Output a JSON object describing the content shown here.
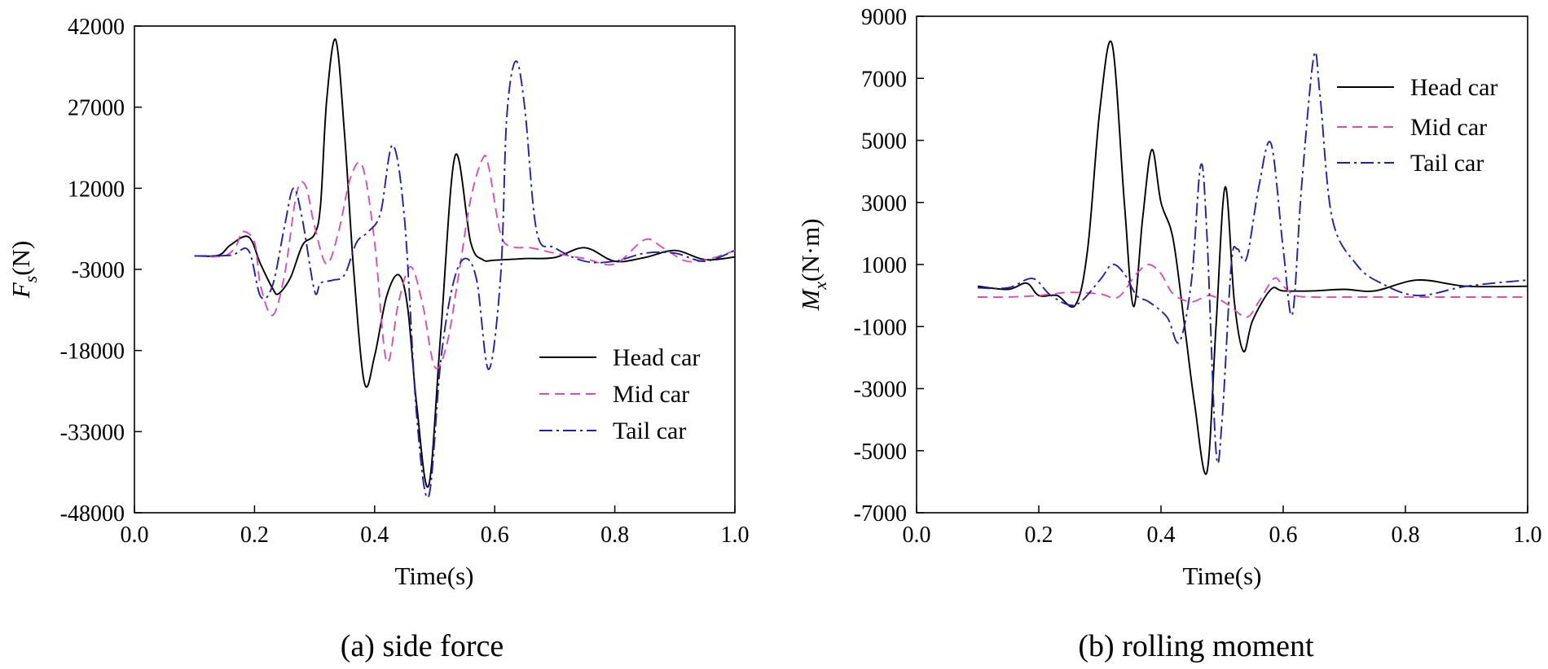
{
  "captions": [
    "(a) side force",
    "(b) rolling moment"
  ],
  "chart_data": [
    {
      "type": "line",
      "title": "(a) side force",
      "xlabel": "Time(s)",
      "ylabel": {
        "main": "F",
        "sub": "s",
        "unit": "(N)"
      },
      "xlim": [
        0.0,
        1.0
      ],
      "ylim": [
        -48000,
        42000
      ],
      "xticks": [
        0.0,
        0.2,
        0.4,
        0.6,
        0.8,
        1.0
      ],
      "xtick_labels": [
        "0.0",
        "0.2",
        "0.4",
        "0.6",
        "0.8",
        "1.0"
      ],
      "yticks": [
        42000,
        27000,
        12000,
        -3000,
        -18000,
        -33000,
        -48000
      ],
      "ytick_labels": [
        "42000",
        "27000",
        "12000",
        "-3000",
        "-18000",
        "-33000",
        "-48000"
      ],
      "legend_position": "lower-right",
      "series": [
        {
          "name": "Head car",
          "color": "#000000",
          "dash": "solid",
          "x": [
            0.1,
            0.14,
            0.16,
            0.19,
            0.21,
            0.23,
            0.24,
            0.26,
            0.28,
            0.3,
            0.31,
            0.32,
            0.335,
            0.35,
            0.365,
            0.383,
            0.4,
            0.42,
            0.44,
            0.455,
            0.47,
            0.49,
            0.51,
            0.534,
            0.56,
            0.58,
            0.6,
            0.65,
            0.7,
            0.75,
            0.8,
            0.85,
            0.9,
            0.95,
            1.0
          ],
          "y": [
            -500,
            -400,
            1500,
            3000,
            -2000,
            -6500,
            -7500,
            -4500,
            1500,
            3500,
            9000,
            28000,
            39500,
            22000,
            -3000,
            -24000,
            -19000,
            -8000,
            -4000,
            -10000,
            -28000,
            -43000,
            -15000,
            18000,
            2000,
            -1200,
            -1300,
            -1000,
            -800,
            1000,
            -1500,
            -800,
            500,
            -1200,
            -700
          ]
        },
        {
          "name": "Mid car",
          "color": "#d94fb0",
          "dash": "12 7",
          "x": [
            0.1,
            0.15,
            0.17,
            0.18,
            0.2,
            0.21,
            0.23,
            0.25,
            0.27,
            0.285,
            0.3,
            0.32,
            0.34,
            0.36,
            0.38,
            0.4,
            0.42,
            0.44,
            0.46,
            0.48,
            0.5,
            0.52,
            0.54,
            0.56,
            0.58,
            0.59,
            0.61,
            0.63,
            0.66,
            0.7,
            0.75,
            0.8,
            0.85,
            0.88,
            0.92,
            0.96,
            1.0
          ],
          "y": [
            -500,
            -500,
            1500,
            4000,
            2000,
            -6000,
            -11500,
            -4000,
            11000,
            12500,
            5000,
            -2000,
            4000,
            14000,
            16000,
            2000,
            -20000,
            -9000,
            -2500,
            -9500,
            -21000,
            -17000,
            -4000,
            10000,
            17500,
            16000,
            3500,
            1200,
            1000,
            0,
            -1000,
            -2000,
            2500,
            1000,
            -1500,
            -1000,
            500
          ]
        },
        {
          "name": "Tail car",
          "color": "#2020b0",
          "dash": "16 5 3 5",
          "x": [
            0.1,
            0.16,
            0.19,
            0.21,
            0.23,
            0.25,
            0.265,
            0.28,
            0.3,
            0.31,
            0.33,
            0.35,
            0.37,
            0.39,
            0.41,
            0.43,
            0.45,
            0.47,
            0.49,
            0.51,
            0.53,
            0.55,
            0.57,
            0.59,
            0.61,
            0.62,
            0.635,
            0.65,
            0.67,
            0.7,
            0.75,
            0.8,
            0.85,
            0.9,
            0.95,
            1.0
          ],
          "y": [
            -500,
            -400,
            500,
            -8000,
            -6000,
            5000,
            12000,
            6000,
            -7000,
            -5500,
            -5000,
            -4000,
            2000,
            4000,
            7500,
            20000,
            6000,
            -30000,
            -45000,
            -20000,
            -6000,
            -1000,
            -5000,
            -21500,
            -4000,
            25000,
            35500,
            27000,
            4000,
            1000,
            -1500,
            -1500,
            0,
            0,
            -1500,
            500
          ]
        }
      ]
    },
    {
      "type": "line",
      "title": "(b) rolling moment",
      "xlabel": "Time(s)",
      "ylabel": {
        "main": "M",
        "sub": "x",
        "unit": "(N·m)"
      },
      "xlim": [
        0.0,
        1.0
      ],
      "ylim": [
        -7000,
        9000
      ],
      "xticks": [
        0.0,
        0.2,
        0.4,
        0.6,
        0.8,
        1.0
      ],
      "xtick_labels": [
        "0.0",
        "0.2",
        "0.4",
        "0.6",
        "0.8",
        "1.0"
      ],
      "yticks": [
        9000,
        7000,
        5000,
        3000,
        1000,
        -1000,
        -3000,
        -5000,
        -7000
      ],
      "ytick_labels": [
        "9000",
        "7000",
        "5000",
        "3000",
        "1000",
        "-1000",
        "-3000",
        "-5000",
        "-7000"
      ],
      "legend_position": "top-right",
      "series": [
        {
          "name": "Head car",
          "color": "#000000",
          "dash": "solid",
          "x": [
            0.1,
            0.15,
            0.18,
            0.2,
            0.23,
            0.26,
            0.28,
            0.3,
            0.32,
            0.34,
            0.355,
            0.37,
            0.385,
            0.4,
            0.42,
            0.44,
            0.455,
            0.475,
            0.49,
            0.505,
            0.52,
            0.535,
            0.55,
            0.58,
            0.6,
            0.65,
            0.7,
            0.75,
            0.82,
            0.9,
            1.0
          ],
          "y": [
            300,
            200,
            400,
            0,
            0,
            -300,
            1500,
            6000,
            8100,
            3000,
            -350,
            2500,
            4700,
            3000,
            1800,
            -1200,
            -3500,
            -5700,
            -1000,
            3500,
            -200,
            -1800,
            -800,
            200,
            150,
            150,
            200,
            150,
            500,
            300,
            300
          ]
        },
        {
          "name": "Mid car",
          "color": "#d94fb0",
          "dash": "12 7",
          "x": [
            0.1,
            0.15,
            0.2,
            0.25,
            0.3,
            0.33,
            0.36,
            0.38,
            0.4,
            0.42,
            0.45,
            0.48,
            0.51,
            0.54,
            0.56,
            0.585,
            0.6,
            0.62,
            0.65,
            0.7,
            0.8,
            0.9,
            1.0
          ],
          "y": [
            -50,
            -50,
            0,
            100,
            50,
            -50,
            700,
            1000,
            700,
            50,
            -200,
            0,
            -300,
            -700,
            -200,
            550,
            300,
            0,
            -50,
            -50,
            -50,
            -50,
            -50
          ]
        },
        {
          "name": "Tail car",
          "color": "#2020b0",
          "dash": "16 5 3 5",
          "x": [
            0.1,
            0.15,
            0.19,
            0.22,
            0.26,
            0.3,
            0.32,
            0.34,
            0.36,
            0.38,
            0.41,
            0.43,
            0.45,
            0.465,
            0.475,
            0.49,
            0.5,
            0.515,
            0.525,
            0.54,
            0.56,
            0.58,
            0.6,
            0.615,
            0.63,
            0.65,
            0.66,
            0.68,
            0.72,
            0.76,
            0.82,
            0.9,
            1.0
          ],
          "y": [
            250,
            250,
            550,
            0,
            -300,
            500,
            1000,
            700,
            0,
            -200,
            -700,
            -1500,
            500,
            4200,
            2000,
            -5000,
            -4000,
            1000,
            1500,
            1200,
            3500,
            4900,
            1500,
            -600,
            3500,
            7700,
            6500,
            2500,
            1000,
            400,
            0,
            300,
            500
          ]
        }
      ]
    }
  ]
}
